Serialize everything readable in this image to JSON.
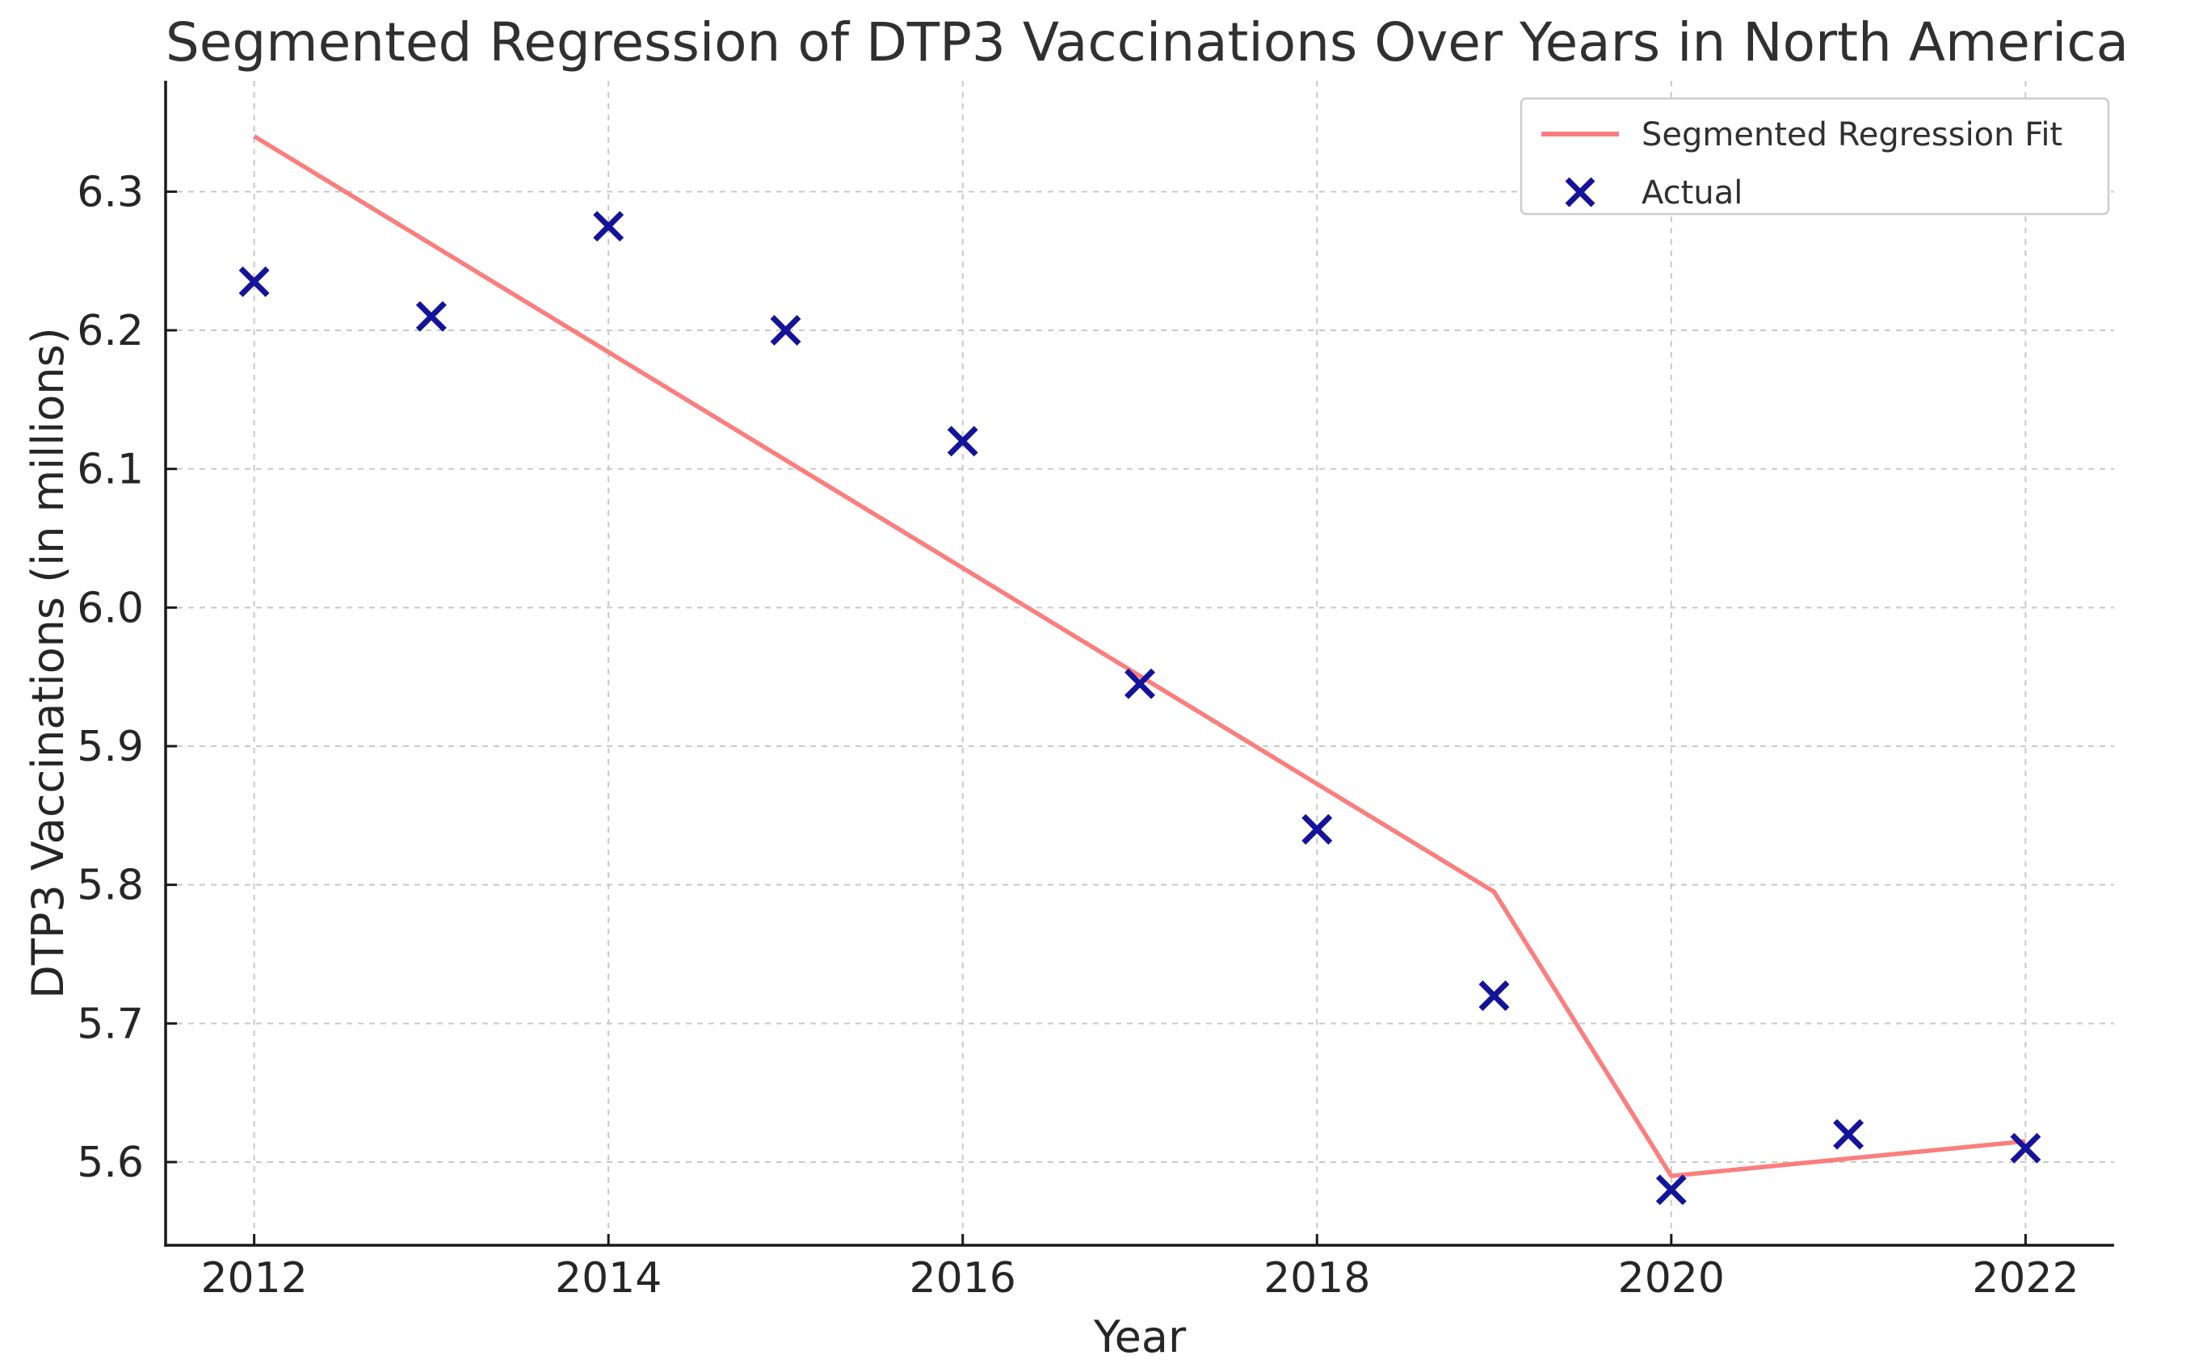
{
  "chart_data": {
    "type": "scatter",
    "title": "Segmented Regression of DTP3 Vaccinations Over Years in North America",
    "xlabel": "Year",
    "ylabel": "DTP3 Vaccinations (in millions)",
    "x": [
      2012,
      2013,
      2014,
      2015,
      2016,
      2017,
      2018,
      2019,
      2020,
      2021,
      2022
    ],
    "series": [
      {
        "name": "Actual",
        "type": "scatter",
        "marker": "x",
        "color": "#14149b",
        "values": [
          6.235,
          6.21,
          6.275,
          6.2,
          6.12,
          5.945,
          5.84,
          5.72,
          5.58,
          5.62,
          5.61
        ]
      },
      {
        "name": "Segmented Regression Fit",
        "type": "line",
        "color": "#fb7e7e",
        "x": [
          2012,
          2019,
          2020,
          2022
        ],
        "values": [
          6.34,
          5.795,
          5.59,
          5.615
        ]
      }
    ],
    "xlim": [
      2011.5,
      2022.5
    ],
    "ylim": [
      5.54,
      6.38
    ],
    "x_ticks": [
      2012,
      2014,
      2016,
      2018,
      2020,
      2022
    ],
    "x_tick_labels": [
      "2012",
      "2014",
      "2016",
      "2018",
      "2020",
      "2022"
    ],
    "y_ticks": [
      5.6,
      5.7,
      5.8,
      5.9,
      6.0,
      6.1,
      6.2,
      6.3
    ],
    "y_tick_labels": [
      "5.6",
      "5.7",
      "5.8",
      "5.9",
      "6.0",
      "6.1",
      "6.2",
      "6.3"
    ],
    "grid": {
      "style": "dashed",
      "color": "#c9c9c9"
    },
    "legend": {
      "position": "upper right",
      "entries": [
        "Segmented Regression Fit",
        "Actual"
      ]
    }
  }
}
